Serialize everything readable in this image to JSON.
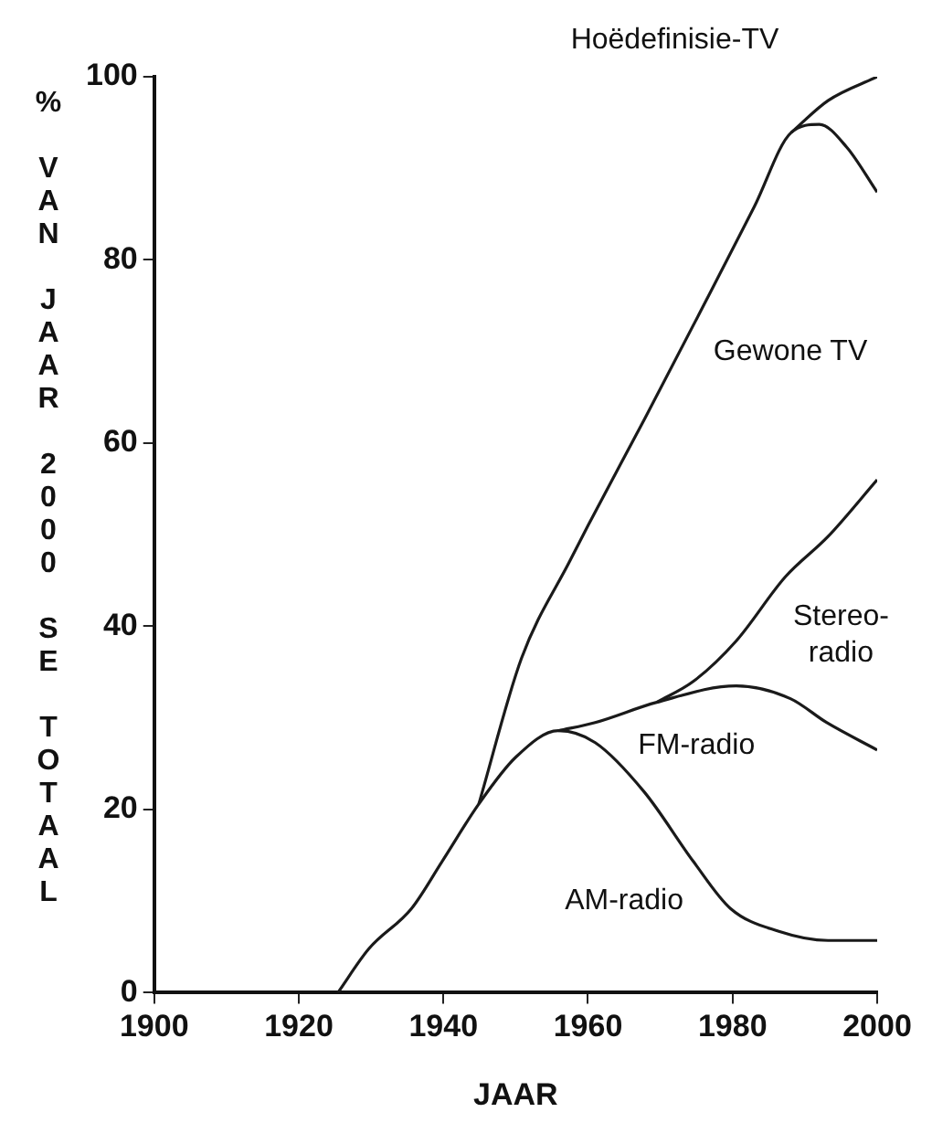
{
  "chart_data": {
    "type": "line",
    "xlabel": "JAAR",
    "ylabel": "% VAN JAAR 2000 SE TOTAAL",
    "xlim": [
      1900,
      2000
    ],
    "xticks": [
      1900,
      1920,
      1940,
      1960,
      1980,
      2000
    ],
    "ylim": [
      0,
      100
    ],
    "yticks": [
      0,
      20,
      40,
      60,
      80,
      100
    ],
    "grid": false,
    "legend": false,
    "marker": "none",
    "line_style": "solid",
    "series": [
      {
        "name": "AM-radio",
        "color": "#1a1a1a",
        "x": [
          1925.4,
          1929.7,
          1935.6,
          1939.8,
          1944.9,
          1950,
          1955.9,
          1961,
          1967.8,
          1974.6,
          1979.7,
          1986.4,
          1993.2,
          2000
        ],
        "values": [
          0,
          4.8,
          9.2,
          14.3,
          20.6,
          25.7,
          28.6,
          27.3,
          21.9,
          14.3,
          9.2,
          6.7,
          5.7,
          5.7
        ]
      },
      {
        "name": "FM-radio",
        "color": "#1a1a1a",
        "x": [
          1955.9,
          1961,
          1969.5,
          1980.5,
          1988,
          1993,
          2000
        ],
        "values": [
          28.6,
          29.5,
          31.7,
          33.5,
          32.1,
          29.5,
          26.5
        ]
      },
      {
        "name": "Stereo-radio",
        "color": "#1a1a1a",
        "x": [
          1969.5,
          1974.6,
          1980.5,
          1987.3,
          1993.2,
          2000
        ],
        "values": [
          31.7,
          34,
          38.4,
          45.4,
          49.8,
          56
        ]
      },
      {
        "name": "Gewone TV",
        "color": "#1a1a1a",
        "x": [
          1944.9,
          1950.8,
          1957.6,
          1960,
          1967.8,
          1976.3,
          1983,
          1988.1,
          1992,
          1995.8,
          2000
        ],
        "values": [
          20.6,
          36.5,
          47.3,
          51,
          62.6,
          75.5,
          85.8,
          93.9,
          94.8,
          92.3,
          87.4
        ]
      },
      {
        "name": "Hoëdefinisie-TV",
        "color": "#1a1a1a",
        "x": [
          1988.1,
          1993.2,
          2000
        ],
        "values": [
          93.9,
          97.4,
          100
        ]
      }
    ]
  }
}
